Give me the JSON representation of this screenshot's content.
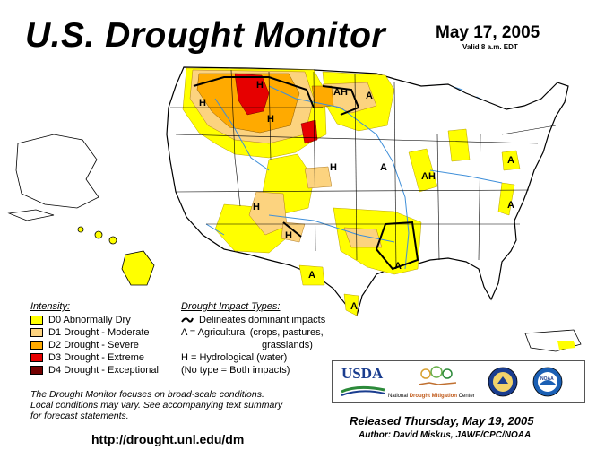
{
  "header": {
    "title": "U.S. Drought Monitor",
    "date": "May 17, 2005",
    "valid": "Valid 8 a.m. EDT"
  },
  "colors": {
    "D0": "#ffff00",
    "D1": "#fcd37f",
    "D2": "#ffaa00",
    "D3": "#e60000",
    "D4": "#730000",
    "water": "#6aaee8",
    "land": "#ffffff",
    "border": "#000000",
    "river": "#3f8fd9"
  },
  "legend": {
    "heading": "Intensity:",
    "items": [
      {
        "key": "D0",
        "label": "D0 Abnormally Dry"
      },
      {
        "key": "D1",
        "label": "D1 Drought - Moderate"
      },
      {
        "key": "D2",
        "label": "D2 Drought - Severe"
      },
      {
        "key": "D3",
        "label": "D3 Drought - Extreme"
      },
      {
        "key": "D4",
        "label": "D4 Drought - Exceptional"
      }
    ]
  },
  "impacts": {
    "heading": "Drought Impact Types:",
    "line1": "Delineates dominant impacts",
    "line2": "A = Agricultural (crops, pastures,",
    "line2b": "grasslands)",
    "line3": "H = Hydrological (water)",
    "line4": "(No type = Both impacts)"
  },
  "map_labels": [
    "H",
    "H",
    "AH",
    "A",
    "H",
    "H",
    "AH",
    "A",
    "A",
    "H",
    "H",
    "A",
    "A",
    "A",
    "A"
  ],
  "note": {
    "line1": "The Drought Monitor focuses on broad-scale conditions.",
    "line2": "Local conditions may vary.  See accompanying text summary",
    "line3": "for forecast statements."
  },
  "footer": {
    "url": "http://drought.unl.edu/dm",
    "released": "Released Thursday, May 19, 2005",
    "author": "Author:  David Miskus, JAWF/CPC/NOAA"
  },
  "logos": {
    "usda": "USDA",
    "ndmc_prefix": "National ",
    "ndmc_highlight": "Drought Mitigation",
    "ndmc_suffix": " Center",
    "noaa": "NOAA"
  }
}
